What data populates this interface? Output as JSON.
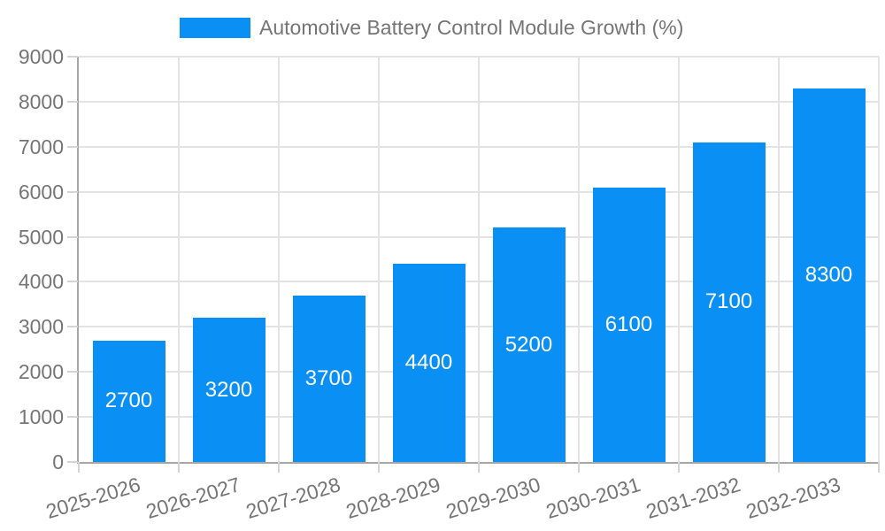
{
  "legend": {
    "label": "Automotive Battery Control Module Growth (%)"
  },
  "chart_data": {
    "type": "bar",
    "title": "Automotive Battery Control Module Growth (%)",
    "categories": [
      "2025-2026",
      "2026-2027",
      "2027-2028",
      "2028-2029",
      "2029-2030",
      "2030-2031",
      "2031-2032",
      "2032-2033"
    ],
    "values": [
      2700,
      3200,
      3700,
      4400,
      5200,
      6100,
      7100,
      8300
    ],
    "xlabel": "",
    "ylabel": "",
    "ylim": [
      0,
      9000
    ],
    "ytick_step": 1000,
    "ytick_labels": [
      "0",
      "1000",
      "2000",
      "3000",
      "4000",
      "5000",
      "6000",
      "7000",
      "8000",
      "9000"
    ],
    "grid": true,
    "legend_position": "top-center",
    "value_labels": "inside-center",
    "colors": {
      "bar": "#0a90f5",
      "value_label": "#ffffff",
      "axis_line": "#a6a6a6",
      "grid_line": "#e3e3e3",
      "tick_line": "#d4d4d4",
      "text": "#757575",
      "background": "#ffffff"
    }
  }
}
